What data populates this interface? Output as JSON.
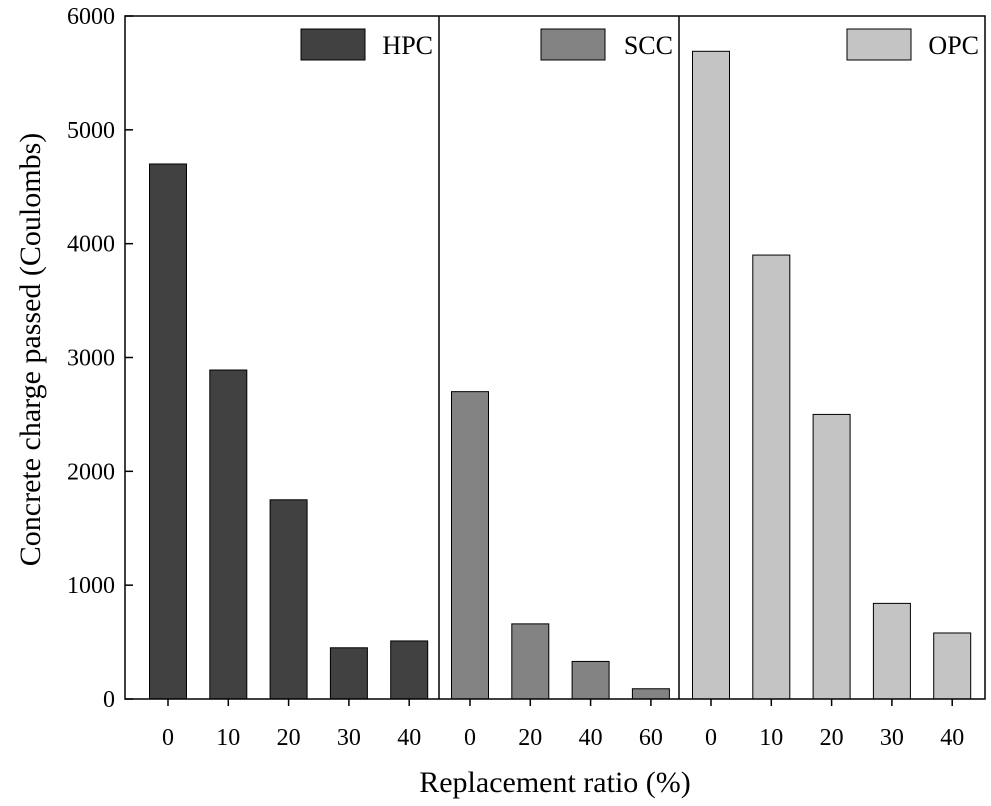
{
  "chart_data": {
    "type": "bar",
    "title": "",
    "xlabel": "Replacement ratio (%)",
    "ylabel": "Concrete charge passed  (Coulombs)",
    "ylim": [
      0,
      6000
    ],
    "yticks": [
      0,
      1000,
      2000,
      3000,
      4000,
      5000,
      6000
    ],
    "grid": false,
    "panels": [
      {
        "name": "HPC",
        "color": "#414141",
        "categories": [
          "0",
          "10",
          "20",
          "30",
          "40"
        ],
        "values": [
          4700,
          2890,
          1750,
          450,
          510
        ]
      },
      {
        "name": "SCC",
        "color": "#838383",
        "categories": [
          "0",
          "20",
          "40",
          "60"
        ],
        "values": [
          2700,
          660,
          330,
          90
        ]
      },
      {
        "name": "OPC",
        "color": "#c4c4c4",
        "categories": [
          "0",
          "10",
          "20",
          "30",
          "40"
        ],
        "values": [
          5690,
          3900,
          2500,
          840,
          580
        ]
      }
    ],
    "legend_placement": "top-right of each panel"
  }
}
